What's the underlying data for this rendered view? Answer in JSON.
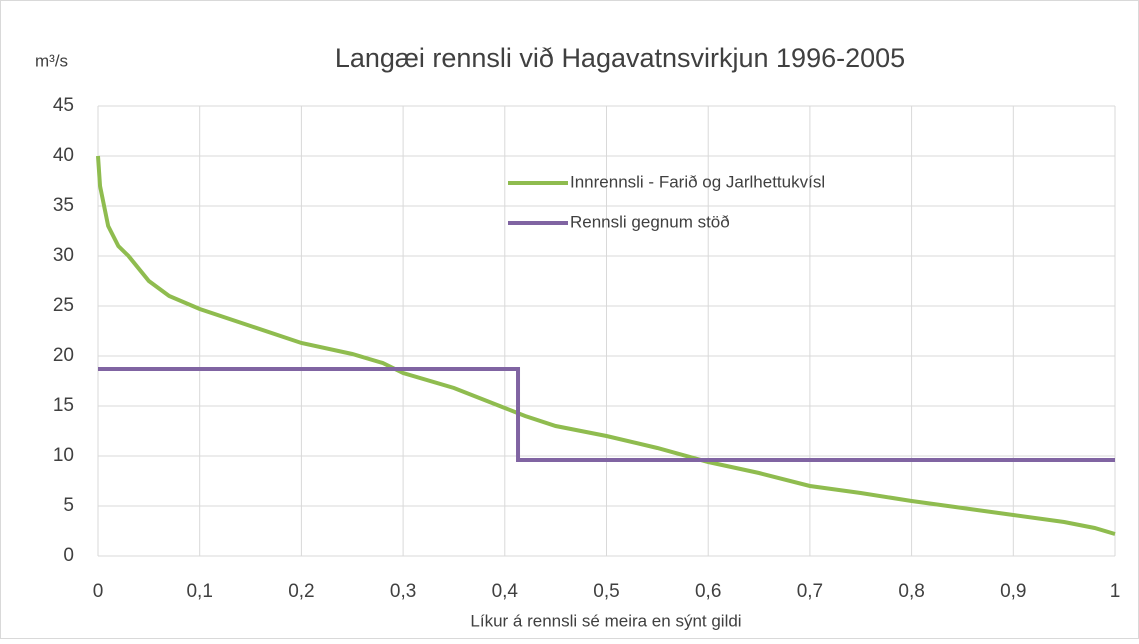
{
  "chart_data": {
    "type": "line",
    "title": "Langæi rennsli við Hagavatnsvirkjun 1996-2005",
    "y_label": "m³/s",
    "x_label": "Líkur á rennsli sé meira en sýnt gildi",
    "xlim": [
      0,
      1
    ],
    "ylim": [
      0,
      45
    ],
    "xticks": [
      0,
      {
        "value": 0.1,
        "label": "0,1"
      },
      {
        "value": 0.2,
        "label": "0,2"
      },
      {
        "value": 0.3,
        "label": "0,3"
      },
      {
        "value": 0.4,
        "label": "0,4"
      },
      {
        "value": 0.5,
        "label": "0,5"
      },
      {
        "value": 0.6,
        "label": "0,6"
      },
      {
        "value": 0.7,
        "label": "0,7"
      },
      {
        "value": 0.8,
        "label": "0,8"
      },
      {
        "value": 0.9,
        "label": "0,9"
      },
      1
    ],
    "yticks": [
      0,
      5,
      10,
      15,
      20,
      25,
      30,
      35,
      40,
      45
    ],
    "grid": true,
    "legend": "upper center",
    "series": [
      {
        "name": "Innrennsli - Farið og Jarlhettukvísl",
        "color": "#8fbc4f",
        "x": [
          0,
          0.002,
          0.01,
          0.02,
          0.03,
          0.05,
          0.07,
          0.1,
          0.15,
          0.2,
          0.25,
          0.28,
          0.3,
          0.35,
          0.4,
          0.42,
          0.45,
          0.5,
          0.55,
          0.6,
          0.65,
          0.7,
          0.75,
          0.8,
          0.85,
          0.9,
          0.95,
          0.98,
          1.0
        ],
        "values": [
          40,
          37,
          33,
          31,
          30,
          27.5,
          26,
          24.7,
          23,
          21.3,
          20.2,
          19.3,
          18.3,
          16.8,
          14.8,
          14.0,
          13.0,
          12.0,
          10.8,
          9.4,
          8.3,
          7.0,
          6.3,
          5.5,
          4.8,
          4.1,
          3.4,
          2.8,
          2.2
        ]
      },
      {
        "name": "Rennsli gegnum stöð",
        "color": "#8064a2",
        "x": [
          0,
          0.413,
          0.413,
          1
        ],
        "values": [
          18.7,
          18.7,
          9.6,
          9.6
        ]
      }
    ]
  }
}
